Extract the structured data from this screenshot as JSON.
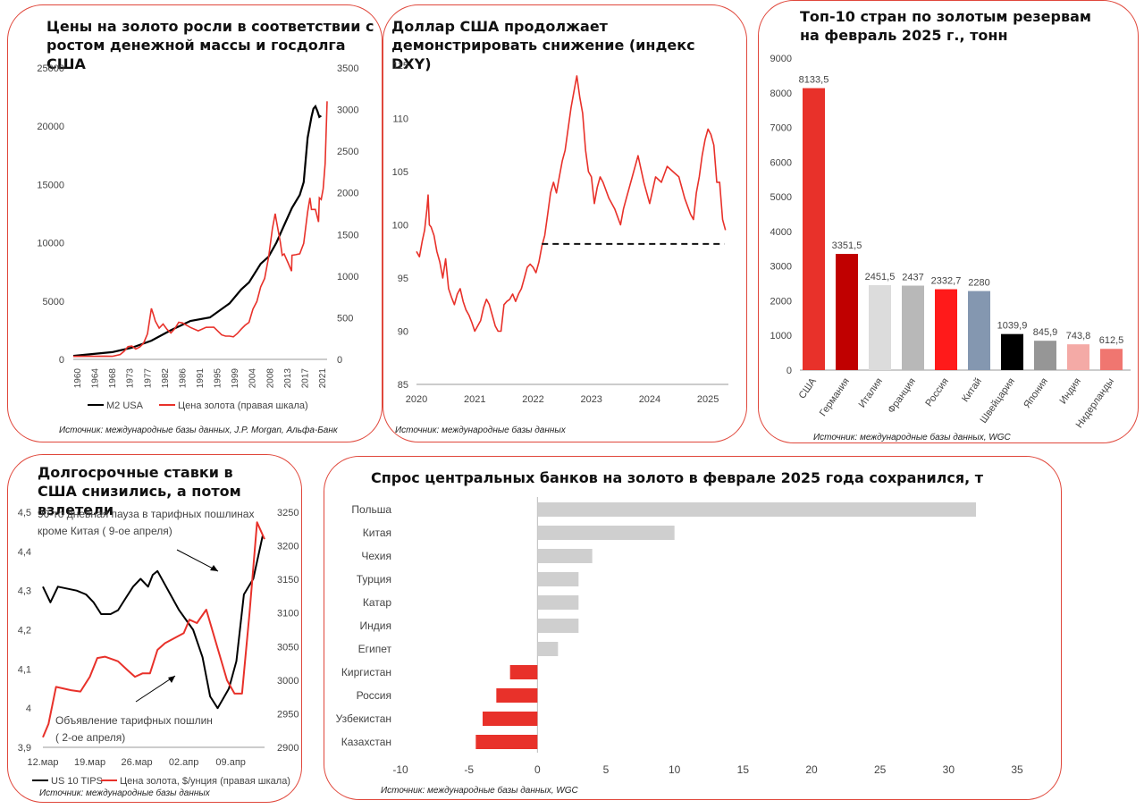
{
  "panels": {
    "gold_m2": {
      "title": "Цены на золото росли в соответствии с ростом денежной массы и госдолга США",
      "source": "Источник: международные базы данных, J.P. Morgan, Альфа-Банк"
    },
    "dxy": {
      "title": "Доллар США продолжает демонстрировать снижение (индекс DXY)",
      "source": "Источник: международные базы данных"
    },
    "reserves": {
      "title": "Топ-10 стран по золотым резервам на февраль 2025 г., тонн",
      "source": "Источник: международные базы данных, WGC"
    },
    "tips": {
      "title": "Долгосрочные ставки в США снизились, а потом взлетели",
      "annotation_top": "90-то дневная пауза в тарифных пошлинах кроме Китая ( 9-ое апреля)",
      "annotation_top_l1": "90-то дневная пауза в тарифных пошлинах",
      "annotation_top_l2": "кроме Китая ( 9-ое апреля)",
      "annotation_bottom_l1": "Объявление тарифных пошлин",
      "annotation_bottom_l2": "( 2-ое апреля)",
      "source": "Источник: международные базы данных"
    },
    "cb_demand": {
      "title": "Спрос центральных банков на золото в феврале 2025 года сохранился, т",
      "source": "Источник: международные базы данных, WGC"
    }
  },
  "colors": {
    "red": "#e8312a",
    "black": "#000000",
    "grey": "#cfcfcf",
    "border": "#e0473b"
  },
  "chart_data": [
    {
      "id": "gold_m2",
      "type": "line",
      "x_tick_labels": [
        "1960",
        "1964",
        "1968",
        "1973",
        "1977",
        "1982",
        "1986",
        "1991",
        "1995",
        "1999",
        "2004",
        "2008",
        "2013",
        "2017",
        "2021"
      ],
      "xlim": [
        1960,
        2025
      ],
      "ylim": [
        0,
        25000
      ],
      "y_ticks": [
        0,
        5000,
        10000,
        15000,
        20000,
        25000
      ],
      "y2lim": [
        0,
        3500
      ],
      "y2_ticks": [
        0,
        500,
        1000,
        1500,
        2000,
        2500,
        3000,
        3500
      ],
      "legend_position": "bottom",
      "series": [
        {
          "name": "M2 USA",
          "axis": "left",
          "color": "#000000",
          "x": [
            1960,
            1965,
            1970,
            1975,
            1980,
            1985,
            1990,
            1995,
            2000,
            2003,
            2005,
            2008,
            2010,
            2012,
            2014,
            2016,
            2018,
            2019,
            2020,
            2021,
            2021.5,
            2022,
            2022.5,
            2023,
            2023.5
          ],
          "y": [
            300,
            460,
            620,
            1000,
            1600,
            2500,
            3300,
            3600,
            4800,
            6000,
            6600,
            8200,
            8800,
            10000,
            11500,
            13000,
            14100,
            15200,
            19000,
            20800,
            21500,
            21700,
            21300,
            20800,
            20900
          ]
        },
        {
          "name": "Цена золота (правая шкала)",
          "axis": "right",
          "color": "#e8312a",
          "x": [
            1960,
            1968,
            1970,
            1972,
            1973,
            1974,
            1975,
            1976,
            1977,
            1978,
            1979,
            1980,
            1980.5,
            1981,
            1982,
            1983,
            1984,
            1985,
            1986,
            1987,
            1988,
            1990,
            1992,
            1994,
            1996,
            1998,
            1999,
            2000,
            2001,
            2002,
            2003,
            2004,
            2005,
            2006,
            2007,
            2008,
            2009,
            2010,
            2011,
            2011.7,
            2012,
            2013,
            2013.5,
            2014,
            2015,
            2015.9,
            2016,
            2017,
            2018,
            2019,
            2020,
            2020.6,
            2021,
            2022,
            2022.8,
            2023,
            2023.5,
            2024,
            2024.5,
            2025
          ],
          "y": [
            35,
            39,
            36,
            58,
            97,
            154,
            160,
            125,
            148,
            193,
            306,
            612,
            540,
            460,
            376,
            424,
            360,
            317,
            368,
            446,
            437,
            383,
            343,
            384,
            387,
            294,
            279,
            279,
            271,
            310,
            363,
            409,
            444,
            603,
            695,
            871,
            972,
            1224,
            1571,
            1750,
            1668,
            1411,
            1250,
            1266,
            1160,
            1060,
            1250,
            1257,
            1268,
            1393,
            1770,
            1940,
            1800,
            1800,
            1650,
            1940,
            1920,
            2050,
            2350,
            3100
          ]
        }
      ]
    },
    {
      "id": "dxy",
      "type": "line",
      "x_tick_labels": [
        "2020",
        "2021",
        "2022",
        "2023",
        "2024",
        "2025"
      ],
      "xlim": [
        2020,
        2025.35
      ],
      "ylim": [
        85,
        115
      ],
      "y_ticks": [
        85,
        90,
        95,
        100,
        105,
        110,
        115
      ],
      "reference_level": 98.2,
      "reference_style": "dashed",
      "series": [
        {
          "name": "",
          "color": "#e8312a",
          "x": [
            2020.0,
            2020.05,
            2020.1,
            2020.14,
            2020.18,
            2020.2,
            2020.22,
            2020.25,
            2020.3,
            2020.35,
            2020.4,
            2020.45,
            2020.5,
            2020.55,
            2020.6,
            2020.65,
            2020.7,
            2020.75,
            2020.8,
            2020.85,
            2020.9,
            2020.95,
            2021.0,
            2021.05,
            2021.1,
            2021.15,
            2021.2,
            2021.25,
            2021.3,
            2021.35,
            2021.4,
            2021.45,
            2021.5,
            2021.55,
            2021.6,
            2021.65,
            2021.7,
            2021.75,
            2021.8,
            2021.85,
            2021.9,
            2021.95,
            2022.0,
            2022.05,
            2022.1,
            2022.15,
            2022.2,
            2022.25,
            2022.3,
            2022.35,
            2022.4,
            2022.45,
            2022.5,
            2022.55,
            2022.6,
            2022.65,
            2022.7,
            2022.75,
            2022.8,
            2022.85,
            2022.9,
            2022.95,
            2023.0,
            2023.05,
            2023.1,
            2023.15,
            2023.2,
            2023.3,
            2023.4,
            2023.5,
            2023.55,
            2023.6,
            2023.7,
            2023.8,
            2023.9,
            2024.0,
            2024.1,
            2024.2,
            2024.3,
            2024.4,
            2024.5,
            2024.6,
            2024.7,
            2024.75,
            2024.8,
            2024.85,
            2024.9,
            2024.95,
            2025.0,
            2025.05,
            2025.1,
            2025.15,
            2025.2,
            2025.25,
            2025.3
          ],
          "y": [
            97.5,
            97.0,
            98.5,
            99.5,
            101.5,
            102.8,
            100.0,
            99.8,
            99.0,
            97.5,
            96.5,
            95.0,
            96.8,
            94.0,
            93.2,
            92.5,
            93.5,
            94.0,
            92.8,
            92.0,
            91.5,
            90.8,
            90.0,
            90.5,
            91.0,
            92.2,
            93.0,
            92.5,
            91.5,
            90.5,
            90.0,
            90.0,
            92.5,
            92.8,
            93.0,
            93.5,
            92.8,
            93.5,
            94.0,
            95.0,
            96.0,
            96.3,
            96.0,
            95.5,
            96.5,
            98.0,
            99.0,
            101.0,
            103.0,
            104.0,
            103.0,
            104.5,
            106.0,
            107.0,
            109.0,
            111.0,
            112.5,
            114.0,
            112.0,
            110.5,
            107.0,
            105.0,
            104.5,
            102.0,
            103.5,
            104.5,
            104.0,
            102.5,
            101.5,
            100.0,
            101.5,
            102.5,
            104.5,
            106.5,
            104.0,
            102.0,
            104.5,
            104.0,
            105.5,
            105.0,
            104.5,
            102.5,
            101.0,
            100.5,
            103.0,
            104.5,
            106.5,
            108.0,
            109.0,
            108.5,
            107.5,
            104.0,
            104.0,
            100.5,
            99.5
          ]
        }
      ]
    },
    {
      "id": "reserves",
      "type": "bar",
      "categories": [
        "США",
        "Германия",
        "Италия",
        "Франция",
        "Россия",
        "Китай",
        "Швейцария",
        "Япония",
        "Индия",
        "Нидерланды"
      ],
      "values": [
        8133.5,
        3351.5,
        2451.5,
        2437,
        2332.7,
        2280,
        1039.9,
        845.9,
        743.8,
        612.5
      ],
      "data_labels": [
        "8133,5",
        "3351,5",
        "2451,5",
        "2437",
        "2332,7",
        "2280",
        "1039,9",
        "845,9",
        "743,8",
        "612,5"
      ],
      "bar_colors": [
        "#e8312a",
        "#c00000",
        "#dcdcdc",
        "#b8b8b8",
        "#ff1a1a",
        "#8497b0",
        "#000000",
        "#969696",
        "#f4aaa6",
        "#f07670"
      ],
      "ylim": [
        0,
        9000
      ],
      "y_ticks": [
        0,
        1000,
        2000,
        3000,
        4000,
        5000,
        6000,
        7000,
        8000,
        9000
      ]
    },
    {
      "id": "tips",
      "type": "line",
      "x_tick_labels": [
        "12.мар",
        "19.мар",
        "26.мар",
        "02.апр",
        "09.апр"
      ],
      "x_tick_index": [
        0,
        5,
        10,
        15,
        20
      ],
      "ylim": [
        3.9,
        4.5
      ],
      "y_ticks": [
        3.9,
        4.0,
        4.1,
        4.2,
        4.3,
        4.4,
        4.5
      ],
      "y_tick_labels": [
        "3,9",
        "4",
        "4,1",
        "4,2",
        "4,3",
        "4,4",
        "4,5"
      ],
      "y2lim": [
        2900,
        3250
      ],
      "y2_ticks": [
        2900,
        2950,
        3000,
        3050,
        3100,
        3150,
        3200,
        3250
      ],
      "legend_position": "bottom",
      "series": [
        {
          "name": "US 10 TIPS",
          "axis": "left",
          "color": "#000000",
          "x": [
            0,
            0.8,
            1.6,
            3.6,
            4.6,
            5.4,
            6.2,
            7.2,
            8.0,
            8.8,
            9.6,
            10.4,
            11.2,
            11.7,
            12.2,
            14.5,
            16.0,
            17.0,
            17.8,
            18.6,
            19.8,
            20.6,
            21.4,
            22.4,
            23.4
          ],
          "y": [
            4.31,
            4.27,
            4.31,
            4.3,
            4.29,
            4.27,
            4.24,
            4.24,
            4.25,
            4.28,
            4.31,
            4.33,
            4.31,
            4.34,
            4.35,
            4.25,
            4.2,
            4.13,
            4.03,
            4.0,
            4.05,
            4.12,
            4.29,
            4.33,
            4.44
          ]
        },
        {
          "name": "Цена золота, $/унция (правая шкала)",
          "axis": "right",
          "color": "#e8312a",
          "x": [
            0,
            0.6,
            1.4,
            3.0,
            4.0,
            5.0,
            5.8,
            6.6,
            8.0,
            9.0,
            9.8,
            10.6,
            11.4,
            12.2,
            13.0,
            15.0,
            15.6,
            16.4,
            17.4,
            19.6,
            20.4,
            21.2,
            22.0,
            22.8,
            23.6
          ],
          "y": [
            2915,
            2935,
            2990,
            2985,
            2983,
            3005,
            3033,
            3035,
            3028,
            3015,
            3005,
            3010,
            3010,
            3045,
            3055,
            3070,
            3090,
            3085,
            3105,
            3000,
            2980,
            2980,
            3100,
            3235,
            3210
          ]
        }
      ]
    },
    {
      "id": "cb_demand",
      "type": "bar",
      "orientation": "horizontal",
      "categories": [
        "Польша",
        "Китая",
        "Чехия",
        "Турция",
        "Катар",
        "Индия",
        "Египет",
        "Киргистан",
        "Россия",
        "Узбекистан",
        "Казахстан"
      ],
      "values": [
        32,
        10,
        4,
        3,
        3,
        3,
        1.5,
        -2,
        -3,
        -4,
        -4.5
      ],
      "xlim": [
        -10,
        35
      ],
      "x_ticks": [
        -10,
        -5,
        0,
        5,
        10,
        15,
        20,
        25,
        30,
        35
      ],
      "positive_color": "#cfcfcf",
      "negative_color": "#e8312a"
    }
  ]
}
